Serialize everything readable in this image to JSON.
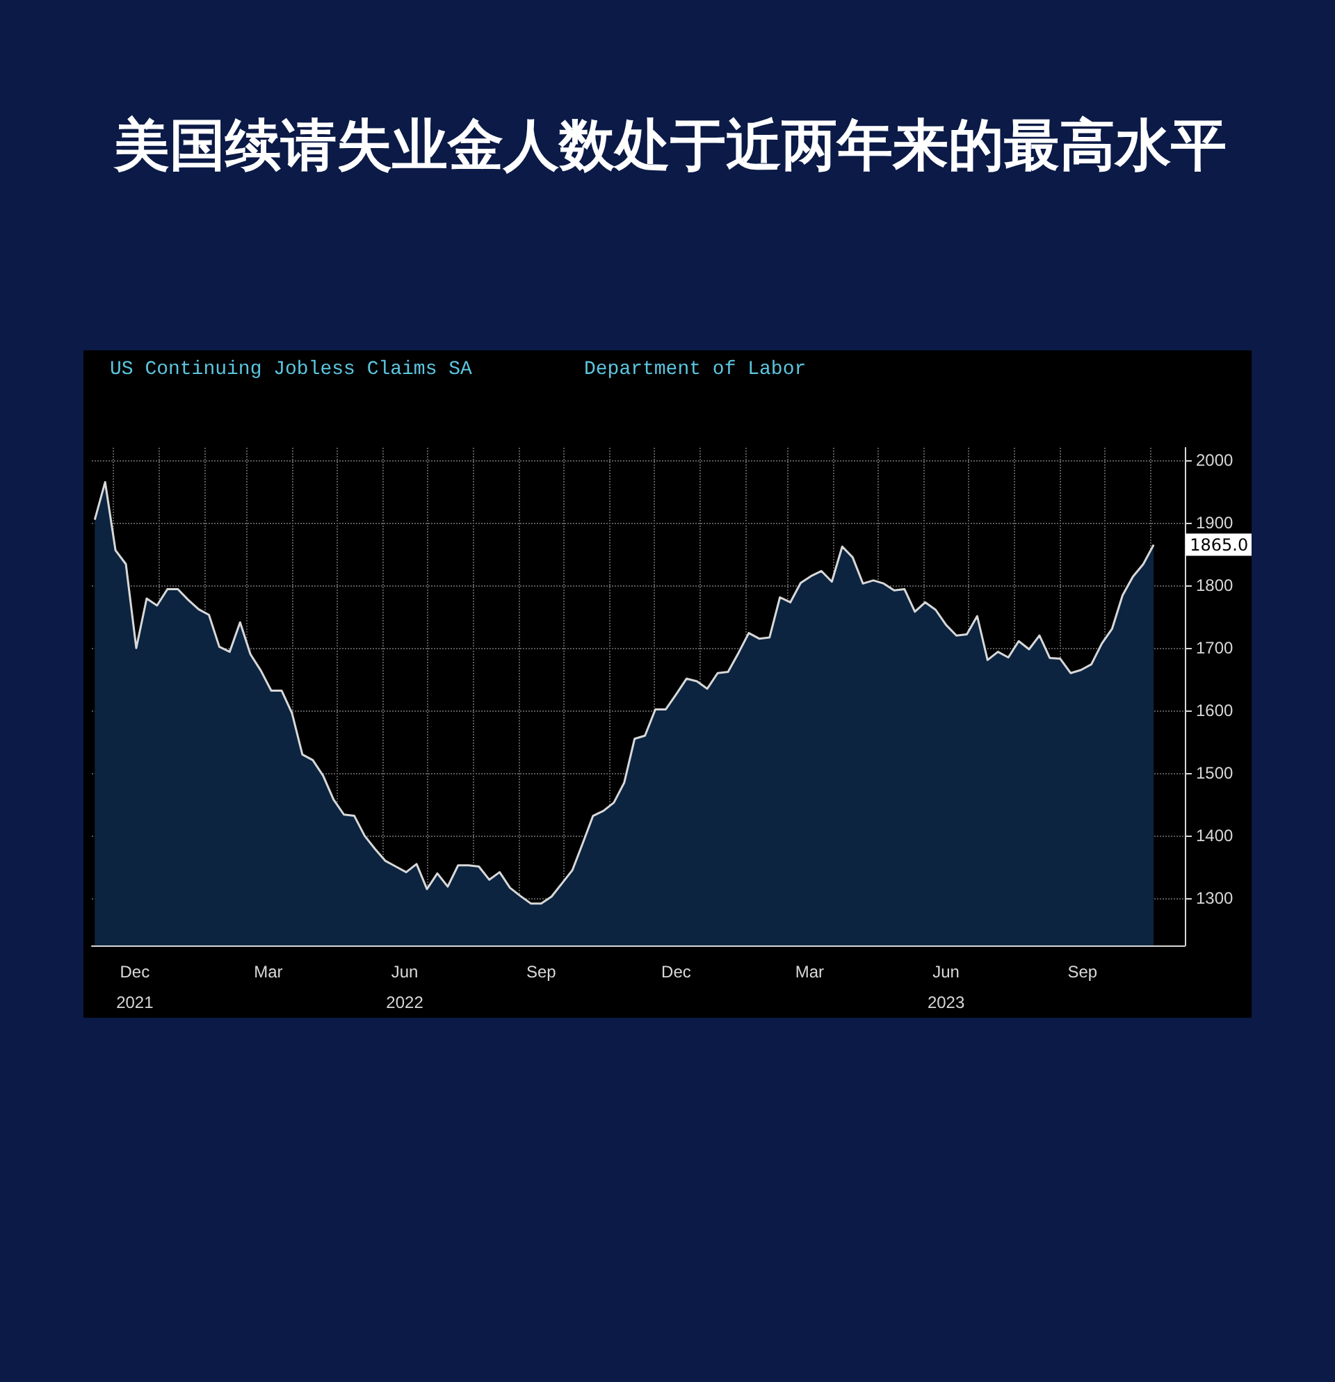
{
  "chart_data": {
    "type": "area",
    "title": "美国续请失业金人数处于近两年来的最高水平",
    "subtitle": "US Continuing Jobless Claims SA",
    "annotations": [
      "Department of Labor",
      {
        "text": "1865.0",
        "x": "2023-11-03",
        "y": 1865
      }
    ],
    "x": [
      "2021-11-19",
      "2021-11-26",
      "2021-12-03",
      "2021-12-10",
      "2021-12-17",
      "2021-12-24",
      "2021-12-31",
      "2022-01-07",
      "2022-01-14",
      "2022-01-21",
      "2022-01-28",
      "2022-02-04",
      "2022-02-11",
      "2022-02-18",
      "2022-02-25",
      "2022-03-04",
      "2022-03-11",
      "2022-03-18",
      "2022-03-25",
      "2022-04-01",
      "2022-04-08",
      "2022-04-15",
      "2022-04-22",
      "2022-04-29",
      "2022-05-06",
      "2022-05-13",
      "2022-05-20",
      "2022-05-27",
      "2022-06-03",
      "2022-06-10",
      "2022-06-17",
      "2022-06-24",
      "2022-07-01",
      "2022-07-08",
      "2022-07-15",
      "2022-07-22",
      "2022-07-29",
      "2022-08-05",
      "2022-08-12",
      "2022-08-19",
      "2022-08-26",
      "2022-09-02",
      "2022-09-09",
      "2022-09-16",
      "2022-09-23",
      "2022-09-30",
      "2022-10-07",
      "2022-10-14",
      "2022-10-21",
      "2022-10-28",
      "2022-11-04",
      "2022-11-11",
      "2022-11-18",
      "2022-11-25",
      "2022-12-02",
      "2022-12-09",
      "2022-12-16",
      "2022-12-23",
      "2022-12-30",
      "2023-01-06",
      "2023-01-13",
      "2023-01-20",
      "2023-01-27",
      "2023-02-03",
      "2023-02-10",
      "2023-02-17",
      "2023-02-24",
      "2023-03-03",
      "2023-03-10",
      "2023-03-17",
      "2023-03-24",
      "2023-03-31",
      "2023-04-07",
      "2023-04-14",
      "2023-04-21",
      "2023-04-28",
      "2023-05-05",
      "2023-05-12",
      "2023-05-19",
      "2023-05-26",
      "2023-06-02",
      "2023-06-09",
      "2023-06-16",
      "2023-06-23",
      "2023-06-30",
      "2023-07-07",
      "2023-07-14",
      "2023-07-21",
      "2023-07-28",
      "2023-08-04",
      "2023-08-11",
      "2023-08-18",
      "2023-08-25",
      "2023-09-01",
      "2023-09-08",
      "2023-09-15",
      "2023-09-22",
      "2023-09-29",
      "2023-10-06",
      "2023-10-13",
      "2023-10-20",
      "2023-10-27",
      "2023-11-03"
    ],
    "series": [
      {
        "color": "#0c2440",
        "values": [
          1905,
          1965,
          1856,
          1834,
          1700,
          1779,
          1768,
          1794,
          1794,
          1777,
          1762,
          1753,
          1702,
          1694,
          1741,
          1690,
          1664,
          1632,
          1632,
          1596,
          1530,
          1521,
          1496,
          1458,
          1434,
          1432,
          1400,
          1379,
          1360,
          1351,
          1342,
          1355,
          1315,
          1340,
          1319,
          1353,
          1353,
          1351,
          1330,
          1342,
          1317,
          1304,
          1292,
          1292,
          1303,
          1324,
          1345,
          1388,
          1432,
          1440,
          1453,
          1485,
          1555,
          1560,
          1602,
          1602,
          1626,
          1651,
          1647,
          1635,
          1660,
          1662,
          1692,
          1724,
          1715,
          1717,
          1781,
          1773,
          1804,
          1815,
          1823,
          1806,
          1862,
          1845,
          1803,
          1808,
          1803,
          1792,
          1794,
          1758,
          1773,
          1761,
          1737,
          1720,
          1722,
          1751,
          1681,
          1694,
          1685,
          1711,
          1698,
          1720,
          1684,
          1683,
          1660,
          1665,
          1674,
          1707,
          1731,
          1784,
          1814,
          1834,
          1865
        ]
      }
    ],
    "xlim": [
      "2021-11-17",
      "2023-11-24"
    ],
    "xticks": [
      {
        "value": "2021-12-01",
        "label": null
      },
      {
        "value": "2021-12-16",
        "label": "Dec\n2021"
      },
      {
        "value": "2022-01-01",
        "label": null
      },
      {
        "value": "2022-02-01",
        "label": null
      },
      {
        "value": "2022-03-01",
        "label": null
      },
      {
        "value": "2022-03-16",
        "label": "Mar"
      },
      {
        "value": "2022-04-01",
        "label": null
      },
      {
        "value": "2022-05-01",
        "label": null
      },
      {
        "value": "2022-06-01",
        "label": null
      },
      {
        "value": "2022-06-16",
        "label": "Jun\n2022"
      },
      {
        "value": "2022-07-01",
        "label": null
      },
      {
        "value": "2022-08-01",
        "label": null
      },
      {
        "value": "2022-09-01",
        "label": null
      },
      {
        "value": "2022-09-16",
        "label": "Sep"
      },
      {
        "value": "2022-10-01",
        "label": null
      },
      {
        "value": "2022-11-01",
        "label": null
      },
      {
        "value": "2022-12-01",
        "label": null
      },
      {
        "value": "2022-12-16",
        "label": "Dec"
      },
      {
        "value": "2023-01-01",
        "label": null
      },
      {
        "value": "2023-02-01",
        "label": null
      },
      {
        "value": "2023-03-01",
        "label": null
      },
      {
        "value": "2023-03-16",
        "label": "Mar"
      },
      {
        "value": "2023-04-01",
        "label": null
      },
      {
        "value": "2023-05-01",
        "label": null
      },
      {
        "value": "2023-06-01",
        "label": null
      },
      {
        "value": "2023-06-16",
        "label": "Jun\n2023"
      },
      {
        "value": "2023-07-01",
        "label": null
      },
      {
        "value": "2023-08-01",
        "label": null
      },
      {
        "value": "2023-09-01",
        "label": null
      },
      {
        "value": "2023-09-16",
        "label": "Sep"
      },
      {
        "value": "2023-10-01",
        "label": null
      },
      {
        "value": "2023-11-01",
        "label": null
      }
    ],
    "ylim": [
      1225,
      2020
    ],
    "yticks": [
      1300,
      1400,
      1500,
      1600,
      1700,
      1800,
      1900,
      2000
    ],
    "grid": true
  }
}
